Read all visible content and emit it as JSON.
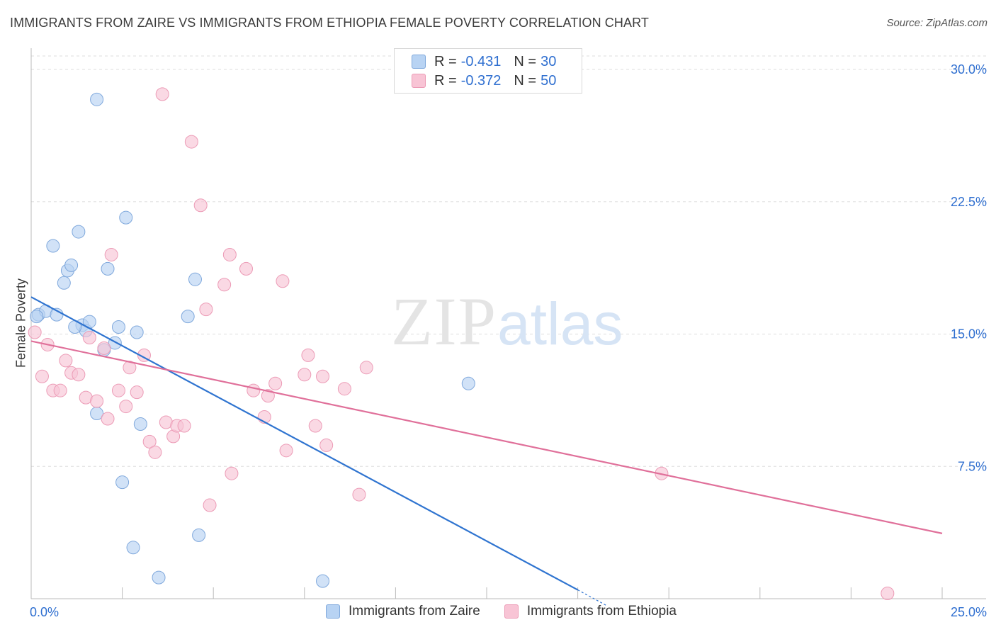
{
  "header": {
    "title": "IMMIGRANTS FROM ZAIRE VS IMMIGRANTS FROM ETHIOPIA FEMALE POVERTY CORRELATION CHART",
    "source": "Source: ZipAtlas.com"
  },
  "watermark": {
    "zip": "ZIP",
    "atlas": "atlas"
  },
  "colors": {
    "zaire_fill": "#b8d3f3",
    "zaire_stroke": "#7fa8dc",
    "zaire_line": "#2f74d0",
    "ethiopia_fill": "#f8c4d5",
    "ethiopia_stroke": "#ec9bb6",
    "ethiopia_line": "#e0709a",
    "tick_text": "#2f6fd0",
    "grid": "#dddddd"
  },
  "legend_top": [
    {
      "r_label": "R =",
      "r_value": "-0.431",
      "n_label": "N =",
      "n_value": "30"
    },
    {
      "r_label": "R =",
      "r_value": "-0.372",
      "n_label": "N =",
      "n_value": "50"
    }
  ],
  "legend_bottom": [
    "Immigrants from Zaire",
    "Immigrants from Ethiopia"
  ],
  "chart_data": {
    "type": "scatter",
    "title": "IMMIGRANTS FROM ZAIRE VS IMMIGRANTS FROM ETHIOPIA FEMALE POVERTY CORRELATION CHART",
    "xlabel": "",
    "ylabel": "Female Poverty",
    "xlim": [
      0,
      25
    ],
    "ylim": [
      0,
      30
    ],
    "x_tick_labels": [
      {
        "value": 0,
        "label": "0.0%"
      },
      {
        "value": 25,
        "label": "25.0%"
      }
    ],
    "y_tick_labels": [
      {
        "value": 7.5,
        "label": "7.5%"
      },
      {
        "value": 15,
        "label": "15.0%"
      },
      {
        "value": 22.5,
        "label": "22.5%"
      },
      {
        "value": 30,
        "label": "30.0%"
      }
    ],
    "series": [
      {
        "name": "Immigrants from Zaire",
        "r": -0.431,
        "n": 30,
        "points": [
          [
            0.2,
            16.1
          ],
          [
            0.4,
            16.3
          ],
          [
            0.7,
            16.1
          ],
          [
            0.6,
            20.0
          ],
          [
            0.9,
            17.9
          ],
          [
            1.0,
            18.6
          ],
          [
            1.1,
            18.9
          ],
          [
            1.3,
            20.8
          ],
          [
            1.4,
            15.5
          ],
          [
            1.5,
            15.2
          ],
          [
            1.6,
            15.7
          ],
          [
            1.8,
            28.3
          ],
          [
            1.8,
            10.5
          ],
          [
            2.0,
            14.1
          ],
          [
            2.1,
            18.7
          ],
          [
            2.3,
            14.5
          ],
          [
            2.4,
            15.4
          ],
          [
            2.6,
            21.6
          ],
          [
            2.9,
            15.1
          ],
          [
            3.0,
            9.9
          ],
          [
            2.5,
            6.6
          ],
          [
            2.8,
            2.9
          ],
          [
            3.5,
            1.2
          ],
          [
            4.3,
            16.0
          ],
          [
            4.5,
            18.1
          ],
          [
            4.6,
            3.6
          ],
          [
            8.0,
            1.0
          ],
          [
            12.0,
            12.2
          ],
          [
            0.15,
            16.0
          ],
          [
            1.2,
            15.4
          ]
        ],
        "trend": {
          "x0": 0,
          "y0": 17.1,
          "x1": 15.0,
          "y1": 0.5,
          "dash_x1": 15.8,
          "dash_y1": -0.4
        }
      },
      {
        "name": "Immigrants from Ethiopia",
        "r": -0.372,
        "n": 50,
        "points": [
          [
            0.1,
            15.1
          ],
          [
            0.3,
            12.6
          ],
          [
            0.45,
            14.4
          ],
          [
            0.6,
            11.8
          ],
          [
            0.8,
            11.8
          ],
          [
            0.95,
            13.5
          ],
          [
            1.1,
            12.8
          ],
          [
            1.3,
            12.7
          ],
          [
            1.5,
            11.4
          ],
          [
            1.6,
            14.8
          ],
          [
            1.8,
            11.2
          ],
          [
            2.0,
            14.2
          ],
          [
            2.1,
            10.2
          ],
          [
            2.2,
            19.5
          ],
          [
            2.4,
            11.8
          ],
          [
            2.6,
            10.9
          ],
          [
            2.7,
            13.1
          ],
          [
            2.9,
            11.7
          ],
          [
            3.1,
            13.8
          ],
          [
            3.25,
            8.9
          ],
          [
            3.4,
            8.3
          ],
          [
            3.6,
            28.6
          ],
          [
            3.7,
            10.0
          ],
          [
            3.9,
            9.2
          ],
          [
            4.0,
            9.8
          ],
          [
            4.2,
            9.8
          ],
          [
            4.4,
            25.9
          ],
          [
            4.65,
            22.3
          ],
          [
            4.8,
            16.4
          ],
          [
            4.9,
            5.3
          ],
          [
            5.3,
            17.8
          ],
          [
            5.45,
            19.5
          ],
          [
            5.5,
            7.1
          ],
          [
            5.9,
            18.7
          ],
          [
            6.1,
            11.8
          ],
          [
            6.4,
            10.3
          ],
          [
            6.5,
            11.5
          ],
          [
            6.7,
            12.2
          ],
          [
            6.9,
            18.0
          ],
          [
            7.0,
            8.4
          ],
          [
            7.5,
            12.7
          ],
          [
            7.6,
            13.8
          ],
          [
            7.8,
            9.8
          ],
          [
            8.0,
            12.6
          ],
          [
            8.1,
            8.7
          ],
          [
            8.6,
            11.9
          ],
          [
            9.0,
            5.9
          ],
          [
            9.2,
            13.1
          ],
          [
            17.3,
            7.1
          ],
          [
            23.5,
            0.3
          ]
        ],
        "trend": {
          "x0": 0,
          "y0": 14.6,
          "x1": 25,
          "y1": 3.7
        }
      }
    ]
  }
}
